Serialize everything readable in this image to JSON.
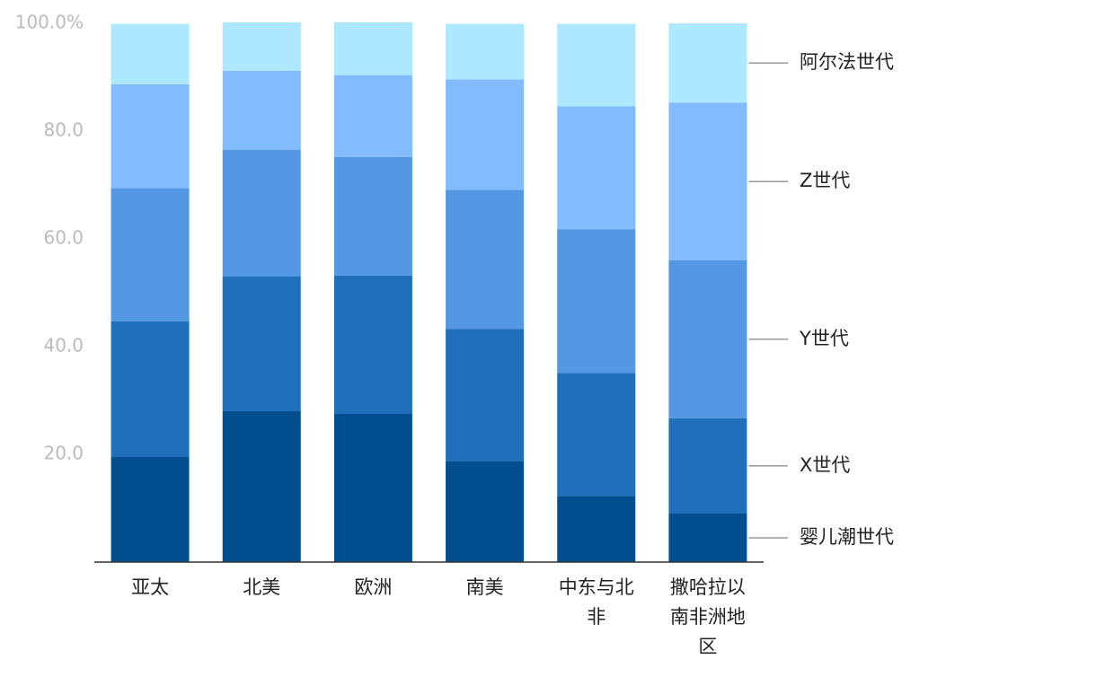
{
  "chart_data": {
    "type": "stacked-bar",
    "categories": [
      "亚太",
      "北美",
      "欧洲",
      "南美",
      "中东与北非",
      "撒哈拉以南非洲地区"
    ],
    "series": [
      {
        "name": "婴儿潮世代",
        "color": "#024e8f",
        "values": [
          19.5,
          28,
          27.5,
          18.8,
          12.3,
          9
        ]
      },
      {
        "name": "X世代",
        "color": "#1f6fba",
        "values": [
          25.2,
          25,
          25.7,
          24.5,
          22.8,
          17.7
        ]
      },
      {
        "name": "Y世代",
        "color": "#5497e2",
        "values": [
          24.7,
          23.5,
          22,
          25.8,
          26.7,
          29.3
        ]
      },
      {
        "name": "Z世代",
        "color": "#82bcff",
        "values": [
          19.3,
          14.7,
          15.2,
          20.5,
          22.8,
          29.3
        ]
      },
      {
        "name": "阿尔法世代",
        "color": "#ade8ff",
        "values": [
          11.2,
          9,
          9.8,
          10.3,
          15.3,
          14.7
        ]
      }
    ],
    "ylim": [
      0,
      100
    ],
    "yticks": [
      {
        "value": 20,
        "label": "20.0"
      },
      {
        "value": 40,
        "label": "40.0"
      },
      {
        "value": 60,
        "label": "60.0"
      },
      {
        "value": 80,
        "label": "80.0"
      },
      {
        "value": 100,
        "label": "100.0%"
      }
    ]
  }
}
